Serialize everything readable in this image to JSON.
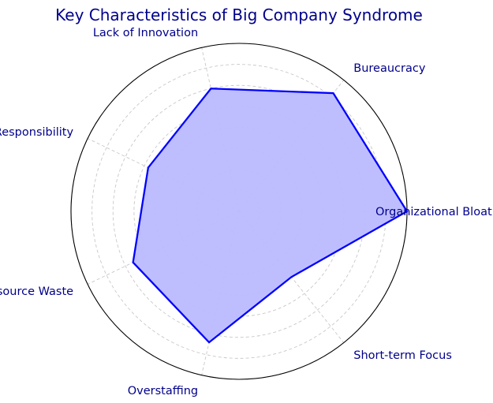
{
  "chart_data": {
    "type": "radar",
    "title": "Key Characteristics of Big Company Syndrome",
    "categories": [
      "Organizational Bloat",
      "Bureaucracy",
      "Lack of Innovation",
      "Unclear Responsibility",
      "Resource Waste",
      "Overstaffing",
      "Short-term Focus"
    ],
    "series": [
      {
        "values": [
          10,
          9,
          7.5,
          6,
          7,
          8,
          5
        ]
      }
    ],
    "rlim": [
      0,
      10
    ],
    "grid": true,
    "legend": "none"
  },
  "colors": {
    "title": "#00008B",
    "labels": "#00008B",
    "line": "#0000FF",
    "fill": "#BBBBFF",
    "outer_ring": "#000000",
    "grid": "#C8C8C8"
  }
}
